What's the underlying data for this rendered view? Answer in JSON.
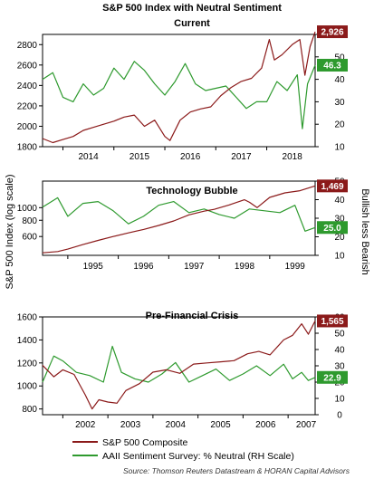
{
  "chart_data": {
    "type": "line",
    "title": "S&P 500 Index with Neutral Sentiment",
    "colors": {
      "sp500": "#8b1a1a",
      "neutral": "#2e9a2e"
    },
    "left_axis_label": "S&P 500 Index (log scale)",
    "right_axis_label": "Bullish less Bearish",
    "legend": [
      {
        "label": "S&P 500 Composite",
        "color": "#8b1a1a"
      },
      {
        "label": "AAII Sentiment Survey: % Neutral (RH Scale)",
        "color": "#2e9a2e"
      }
    ],
    "source": "Source: Thomson Reuters Datastream & HORAN Capital Advisors",
    "panels": [
      {
        "name": "current",
        "title": "Current",
        "x_labels": [
          "2014",
          "2015",
          "2016",
          "2017",
          "2018"
        ],
        "x_range": [
          2013.6,
          2018.95
        ],
        "left_ylim": [
          1800,
          2900
        ],
        "left_ticks": [
          "1800",
          "2000",
          "2200",
          "2400",
          "2600",
          "2800"
        ],
        "right_ylim": [
          10,
          60
        ],
        "right_ticks": [
          "10",
          "20",
          "30",
          "40",
          "50",
          "60"
        ],
        "sp_label": "2,926",
        "neutral_label": "46.3",
        "sp500": {
          "x": [
            2013.6,
            2013.8,
            2014.0,
            2014.2,
            2014.4,
            2014.6,
            2014.8,
            2015.0,
            2015.2,
            2015.4,
            2015.6,
            2015.8,
            2016.0,
            2016.1,
            2016.3,
            2016.5,
            2016.7,
            2016.9,
            2017.1,
            2017.3,
            2017.5,
            2017.7,
            2017.9,
            2018.05,
            2018.15,
            2018.3,
            2018.5,
            2018.65,
            2018.75,
            2018.85,
            2018.95
          ],
          "y": [
            1880,
            1840,
            1870,
            1900,
            1960,
            1990,
            2020,
            2050,
            2090,
            2110,
            2000,
            2060,
            1900,
            1860,
            2060,
            2140,
            2170,
            2190,
            2300,
            2380,
            2440,
            2470,
            2570,
            2850,
            2650,
            2700,
            2800,
            2850,
            2500,
            2780,
            2926
          ]
        },
        "neutral": {
          "x": [
            2013.6,
            2013.8,
            2014.0,
            2014.2,
            2014.4,
            2014.6,
            2014.8,
            2015.0,
            2015.2,
            2015.4,
            2015.6,
            2015.8,
            2016.0,
            2016.2,
            2016.4,
            2016.6,
            2016.8,
            2017.0,
            2017.2,
            2017.4,
            2017.6,
            2017.8,
            2018.0,
            2018.2,
            2018.4,
            2018.6,
            2018.7,
            2018.8,
            2018.95
          ],
          "y": [
            40,
            43,
            32,
            30,
            38,
            33,
            36,
            45,
            40,
            48,
            44,
            38,
            33,
            39,
            47,
            38,
            35,
            36,
            37,
            32,
            27,
            30,
            30,
            39,
            35,
            42,
            18,
            38,
            46.3
          ]
        }
      },
      {
        "name": "technology-bubble",
        "title": "Technology Bubble",
        "x_labels": [
          "1995",
          "1996",
          "1997",
          "1998",
          "1999"
        ],
        "x_range": [
          1994.5,
          1999.9
        ],
        "left_ylim": [
          430,
          1600
        ],
        "left_log": true,
        "left_ticks": [
          "600",
          "800",
          "1000"
        ],
        "right_ylim": [
          10,
          50
        ],
        "right_ticks": [
          "10",
          "20",
          "30",
          "40",
          "50"
        ],
        "sp_label": "1,469",
        "neutral_label": "25.0",
        "sp500": {
          "x": [
            1994.5,
            1994.8,
            1995.0,
            1995.3,
            1995.6,
            1995.9,
            1996.2,
            1996.5,
            1996.8,
            1997.1,
            1997.4,
            1997.7,
            1997.9,
            1998.2,
            1998.5,
            1998.6,
            1998.75,
            1999.0,
            1999.3,
            1999.6,
            1999.9
          ],
          "y": [
            450,
            460,
            480,
            520,
            560,
            600,
            640,
            680,
            730,
            790,
            880,
            940,
            970,
            1050,
            1150,
            1100,
            1000,
            1200,
            1300,
            1350,
            1469
          ]
        },
        "neutral": {
          "x": [
            1994.5,
            1994.8,
            1995.0,
            1995.3,
            1995.6,
            1995.9,
            1996.2,
            1996.5,
            1996.8,
            1997.1,
            1997.4,
            1997.7,
            1998.0,
            1998.3,
            1998.6,
            1998.9,
            1999.2,
            1999.5,
            1999.7,
            1999.9
          ],
          "y": [
            36,
            41,
            31,
            38,
            39,
            34,
            27,
            31,
            37,
            39,
            33,
            35,
            32,
            30,
            35,
            34,
            33,
            37,
            23,
            25
          ]
        }
      },
      {
        "name": "pre-financial-crisis",
        "title": "Pre-Financial Crisis",
        "x_labels": [
          "2002",
          "2003",
          "2004",
          "2005",
          "2006",
          "2007"
        ],
        "x_range": [
          2001.55,
          2007.6
        ],
        "left_ylim": [
          750,
          1600
        ],
        "left_ticks": [
          "800",
          "1000",
          "1200",
          "1400",
          "1600"
        ],
        "right_ylim": [
          0,
          60
        ],
        "right_ticks": [
          "0",
          "10",
          "20",
          "30",
          "40",
          "50",
          "60"
        ],
        "sp_label": "1,565",
        "neutral_label": "22.9",
        "sp500": {
          "x": [
            2001.55,
            2001.8,
            2002.0,
            2002.25,
            2002.5,
            2002.65,
            2002.8,
            2003.0,
            2003.2,
            2003.4,
            2003.7,
            2004.0,
            2004.3,
            2004.6,
            2004.9,
            2005.2,
            2005.5,
            2005.8,
            2006.1,
            2006.35,
            2006.6,
            2006.9,
            2007.1,
            2007.3,
            2007.45,
            2007.6
          ],
          "y": [
            1180,
            1080,
            1140,
            1100,
            920,
            800,
            880,
            860,
            850,
            960,
            1020,
            1120,
            1140,
            1110,
            1190,
            1200,
            1210,
            1220,
            1280,
            1300,
            1270,
            1400,
            1440,
            1540,
            1450,
            1565
          ]
        },
        "neutral": {
          "x": [
            2001.55,
            2001.8,
            2002.0,
            2002.3,
            2002.6,
            2002.9,
            2003.1,
            2003.3,
            2003.6,
            2003.9,
            2004.2,
            2004.5,
            2004.8,
            2005.1,
            2005.4,
            2005.7,
            2006.0,
            2006.3,
            2006.6,
            2006.9,
            2007.1,
            2007.3,
            2007.45,
            2007.6
          ],
          "y": [
            20,
            36,
            33,
            26,
            24,
            20,
            42,
            26,
            22,
            20,
            25,
            32,
            20,
            24,
            28,
            21,
            25,
            30,
            24,
            31,
            22,
            26,
            21,
            22.9
          ]
        }
      }
    ]
  }
}
